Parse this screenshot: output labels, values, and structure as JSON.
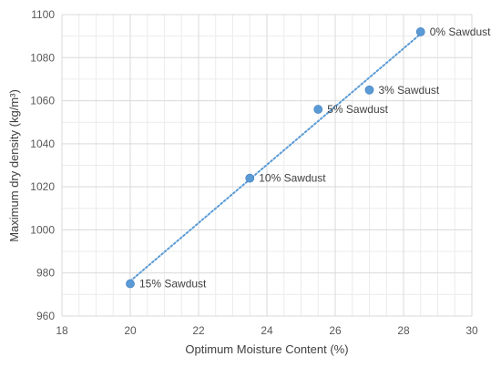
{
  "chart_data": {
    "type": "scatter",
    "title": "",
    "xlabel": "Optimum Moisture Content (%)",
    "ylabel": "Maximum dry density (kg/m³)",
    "xlim": [
      18,
      30
    ],
    "ylim": [
      960,
      1100
    ],
    "x_ticks": [
      18,
      20,
      22,
      24,
      26,
      28,
      30
    ],
    "y_ticks": [
      960,
      980,
      1000,
      1020,
      1040,
      1060,
      1080,
      1100
    ],
    "x_tick_labels": [
      "18",
      "20",
      "22",
      "24",
      "26",
      "28",
      "30"
    ],
    "y_tick_labels": [
      "960",
      "980",
      "1000",
      "1020",
      "1040",
      "1060",
      "1080",
      "1100"
    ],
    "grid": "major and minor",
    "trendline": "linear, dotted",
    "points": [
      {
        "x": 28.5,
        "y": 1092,
        "label": "0% Sawdust"
      },
      {
        "x": 27.0,
        "y": 1065,
        "label": "3% Sawdust"
      },
      {
        "x": 25.5,
        "y": 1056,
        "label": "5% Sawdust"
      },
      {
        "x": 23.5,
        "y": 1024,
        "label": "10% Sawdust"
      },
      {
        "x": 20.0,
        "y": 975,
        "label": "15% Sawdust"
      }
    ],
    "colors": {
      "marker": "#5b9bd5",
      "trendline": "#5b9bd5",
      "major_grid": "#d9d9d9",
      "minor_grid": "#ececec"
    }
  }
}
